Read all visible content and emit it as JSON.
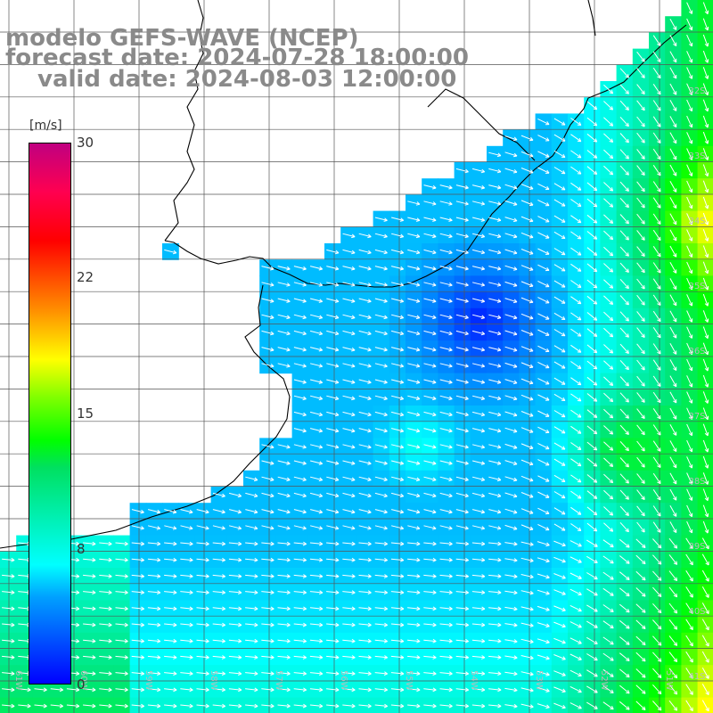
{
  "title": {
    "line1": "modelo GEFS-WAVE (NCEP)",
    "line2": "forecast date: 2024-07-28 18:00:00",
    "line3": "valid date: 2024-08-03 12:00:00"
  },
  "colorbar": {
    "unit": "[m/s]",
    "ticks": [
      "30",
      "22",
      "15",
      "8",
      "0"
    ],
    "tick_values": [
      30,
      22,
      15,
      8,
      0
    ],
    "min": 0,
    "max": 30,
    "colors": [
      "#0000ff",
      "#00a0ff",
      "#00ffff",
      "#00e060",
      "#00ff00",
      "#80ff00",
      "#ffff00",
      "#ff9000",
      "#ff0000",
      "#c00080"
    ]
  },
  "map": {
    "lat_labels": [
      "32S",
      "33S",
      "34S",
      "35S",
      "36S",
      "37S",
      "38S",
      "39S",
      "40S",
      "41S"
    ],
    "lon_labels": [
      "61W",
      "60W",
      "59W",
      "58W",
      "57W",
      "56W",
      "55W",
      "54W",
      "53W",
      "52W",
      "51W"
    ],
    "field": "wind speed",
    "units": "m/s",
    "grid": true
  }
}
